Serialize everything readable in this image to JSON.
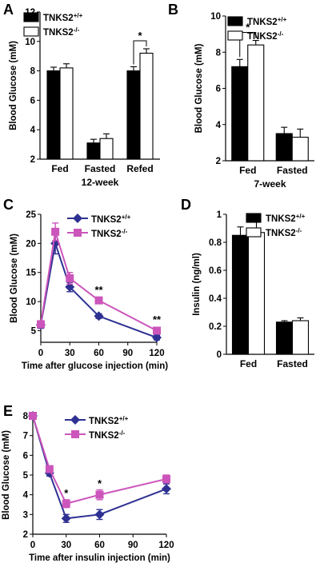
{
  "chart_data": [
    {
      "panel": "A",
      "type": "bar",
      "ylabel": "Blood Glucose (mM)",
      "xlabel": "12-week",
      "ylim": [
        2,
        12
      ],
      "yticks": [
        "2",
        "4",
        "6",
        "8",
        "10",
        "12"
      ],
      "categories": [
        "Fed",
        "Fasted",
        "Refed"
      ],
      "legend": {
        "placement": "top-left"
      },
      "series": [
        {
          "name": "TNKS2",
          "sup": "+/+",
          "fill": "#000000",
          "values": [
            8.0,
            3.1,
            8.0
          ],
          "errors": [
            0.25,
            0.25,
            0.28
          ]
        },
        {
          "name": "TNKS2",
          "sup": "-/-",
          "fill": "#ffffff",
          "values": [
            8.2,
            3.4,
            9.2
          ],
          "errors": [
            0.28,
            0.32,
            0.3
          ]
        }
      ],
      "significance": [
        {
          "category": 2,
          "label": "*"
        }
      ]
    },
    {
      "panel": "B",
      "type": "bar",
      "ylabel": "Blood Glucose (mM)",
      "xlabel": "7-week",
      "ylim": [
        2,
        10
      ],
      "yticks": [
        "2",
        "4",
        "6",
        "8",
        "10"
      ],
      "categories": [
        "Fed",
        "Fasted"
      ],
      "legend": {
        "placement": "top-right"
      },
      "series": [
        {
          "name": "TNKS2",
          "sup": "+/+",
          "fill": "#000000",
          "values": [
            7.2,
            3.5
          ],
          "errors": [
            0.4,
            0.35
          ]
        },
        {
          "name": "TNKS2",
          "sup": "-/-",
          "fill": "#ffffff",
          "values": [
            8.4,
            3.3
          ],
          "errors": [
            0.25,
            0.45
          ]
        }
      ],
      "significance": [
        {
          "category": 0,
          "label": "*"
        }
      ]
    },
    {
      "panel": "C",
      "type": "line",
      "ylabel": "Blood Glucose (mM)",
      "xlabel": "Time after glucose injection (min)",
      "xlim": [
        0,
        120
      ],
      "ylim": [
        3,
        25
      ],
      "xticks": [
        "0",
        "30",
        "60",
        "90",
        "120"
      ],
      "yticks": [
        "5",
        "10",
        "15",
        "20",
        "25"
      ],
      "legend": {
        "placement": "top-right"
      },
      "x": [
        0,
        15,
        30,
        60,
        120
      ],
      "series": [
        {
          "name": "TNKS2",
          "sup": "+/+",
          "color": "#2e3192",
          "marker": "diamond",
          "values": [
            6.0,
            20.0,
            12.5,
            7.5,
            3.8
          ],
          "errors": [
            0.6,
            1.8,
            0.8,
            0.4,
            0.4
          ]
        },
        {
          "name": "TNKS2",
          "sup": "-/-",
          "color": "#cc55bb",
          "marker": "square",
          "values": [
            6.1,
            22.0,
            14.0,
            10.2,
            5.0
          ],
          "errors": [
            0.6,
            1.5,
            1.0,
            0.4,
            0.5
          ]
        }
      ],
      "significance": [
        {
          "x": 60,
          "y": 11.4,
          "label": "**"
        },
        {
          "x": 120,
          "y": 6.3,
          "label": "**"
        }
      ]
    },
    {
      "panel": "D",
      "type": "bar",
      "ylabel": "Insulin (ng/ml)",
      "xlabel": "",
      "ylim": [
        0,
        1
      ],
      "yticks": [
        "0",
        "0.2",
        "0.4",
        "0.6",
        "0.8",
        "1"
      ],
      "categories": [
        "Fed",
        "Fasted"
      ],
      "legend": {
        "placement": "top-right"
      },
      "series": [
        {
          "name": "TNKS2",
          "sup": "+/+",
          "fill": "#000000",
          "values": [
            0.85,
            0.23
          ],
          "errors": [
            0.06,
            0.01
          ]
        },
        {
          "name": "TNKS2",
          "sup": "-/-",
          "fill": "#ffffff",
          "values": [
            0.87,
            0.24
          ],
          "errors": [
            0.08,
            0.02
          ]
        }
      ],
      "significance": []
    },
    {
      "panel": "E",
      "type": "line",
      "ylabel": "Blood Glucose (mM)",
      "xlabel": "Time after insulin injection (min)",
      "xlim": [
        0,
        120
      ],
      "ylim": [
        2,
        8
      ],
      "xticks": [
        "0",
        "30",
        "60",
        "90",
        "120"
      ],
      "yticks": [
        "2",
        "3",
        "4",
        "5",
        "6",
        "7",
        "8"
      ],
      "legend": {
        "placement": "top-right"
      },
      "x": [
        0,
        15,
        30,
        60,
        120
      ],
      "series": [
        {
          "name": "TNKS2",
          "sup": "+/+",
          "color": "#2e3192",
          "marker": "diamond",
          "values": [
            8.0,
            5.1,
            2.8,
            3.0,
            4.3
          ],
          "errors": [
            0.15,
            0.15,
            0.2,
            0.25,
            0.25
          ]
        },
        {
          "name": "TNKS2",
          "sup": "-/-",
          "color": "#cc55bb",
          "marker": "square",
          "values": [
            8.0,
            5.3,
            3.55,
            4.0,
            4.8
          ],
          "errors": [
            0.15,
            0.15,
            0.2,
            0.25,
            0.2
          ]
        }
      ],
      "significance": [
        {
          "x": 30,
          "y": 3.9,
          "label": "*"
        },
        {
          "x": 60,
          "y": 4.4,
          "label": "*"
        }
      ]
    }
  ]
}
